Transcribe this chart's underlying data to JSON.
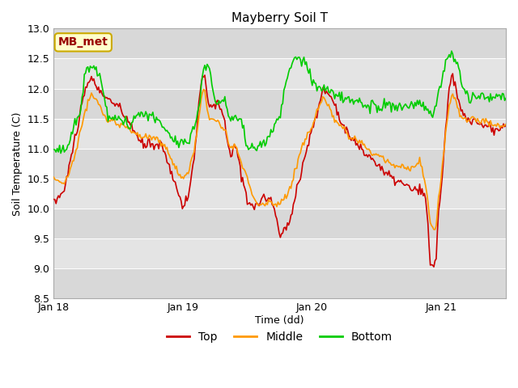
{
  "title": "Mayberry Soil T",
  "xlabel": "Time (dd)",
  "ylabel": "Soil Temperature (C)",
  "ylim": [
    8.5,
    13.0
  ],
  "yticks": [
    8.5,
    9.0,
    9.5,
    10.0,
    10.5,
    11.0,
    11.5,
    12.0,
    12.5,
    13.0
  ],
  "xtick_labels": [
    "Jan 18",
    "Jan 19",
    "Jan 20",
    "Jan 21"
  ],
  "xtick_positions": [
    0,
    24,
    48,
    72
  ],
  "xlim": [
    0,
    84
  ],
  "colors": {
    "top": "#cc0000",
    "middle": "#ff9900",
    "bottom": "#00cc00"
  },
  "band_colors": [
    "#d8d8d8",
    "#e4e4e4"
  ],
  "annotation_text": "MB_met",
  "annotation_color": "#990000",
  "annotation_bg": "#ffffcc",
  "annotation_edge": "#ccaa00",
  "bg_color": "#ffffff",
  "plot_bg_color": "#e8e8e8",
  "legend_labels": [
    "Top",
    "Middle",
    "Bottom"
  ],
  "title_fontsize": 11,
  "label_fontsize": 9,
  "tick_fontsize": 9,
  "legend_fontsize": 10,
  "linewidth": 1.2
}
